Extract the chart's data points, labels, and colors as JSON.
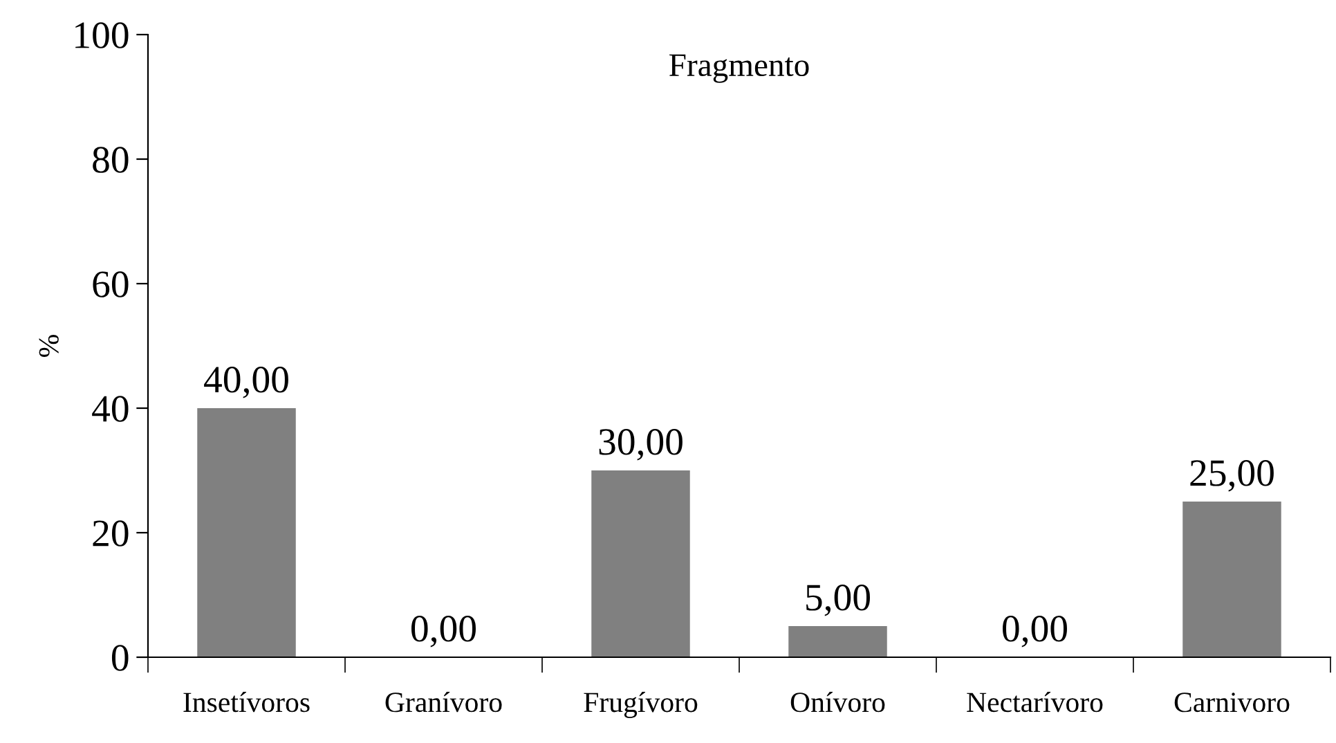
{
  "chart_data": {
    "type": "bar",
    "title": "Fragmento",
    "ylabel": "%",
    "categories": [
      "Insetívoros",
      "Granívoro",
      "Frugívoro",
      "Onívoro",
      "Nectarívoro",
      "Carnivoro"
    ],
    "values": [
      40,
      0,
      30,
      5,
      0,
      25
    ],
    "value_labels": [
      "40,00",
      "0,00",
      "30,00",
      "5,00",
      "0,00",
      "25,00"
    ],
    "color": "#808080",
    "ylim": [
      0,
      100
    ],
    "yticks": [
      0,
      20,
      40,
      60,
      80,
      100
    ],
    "grid": false,
    "legend": false
  }
}
